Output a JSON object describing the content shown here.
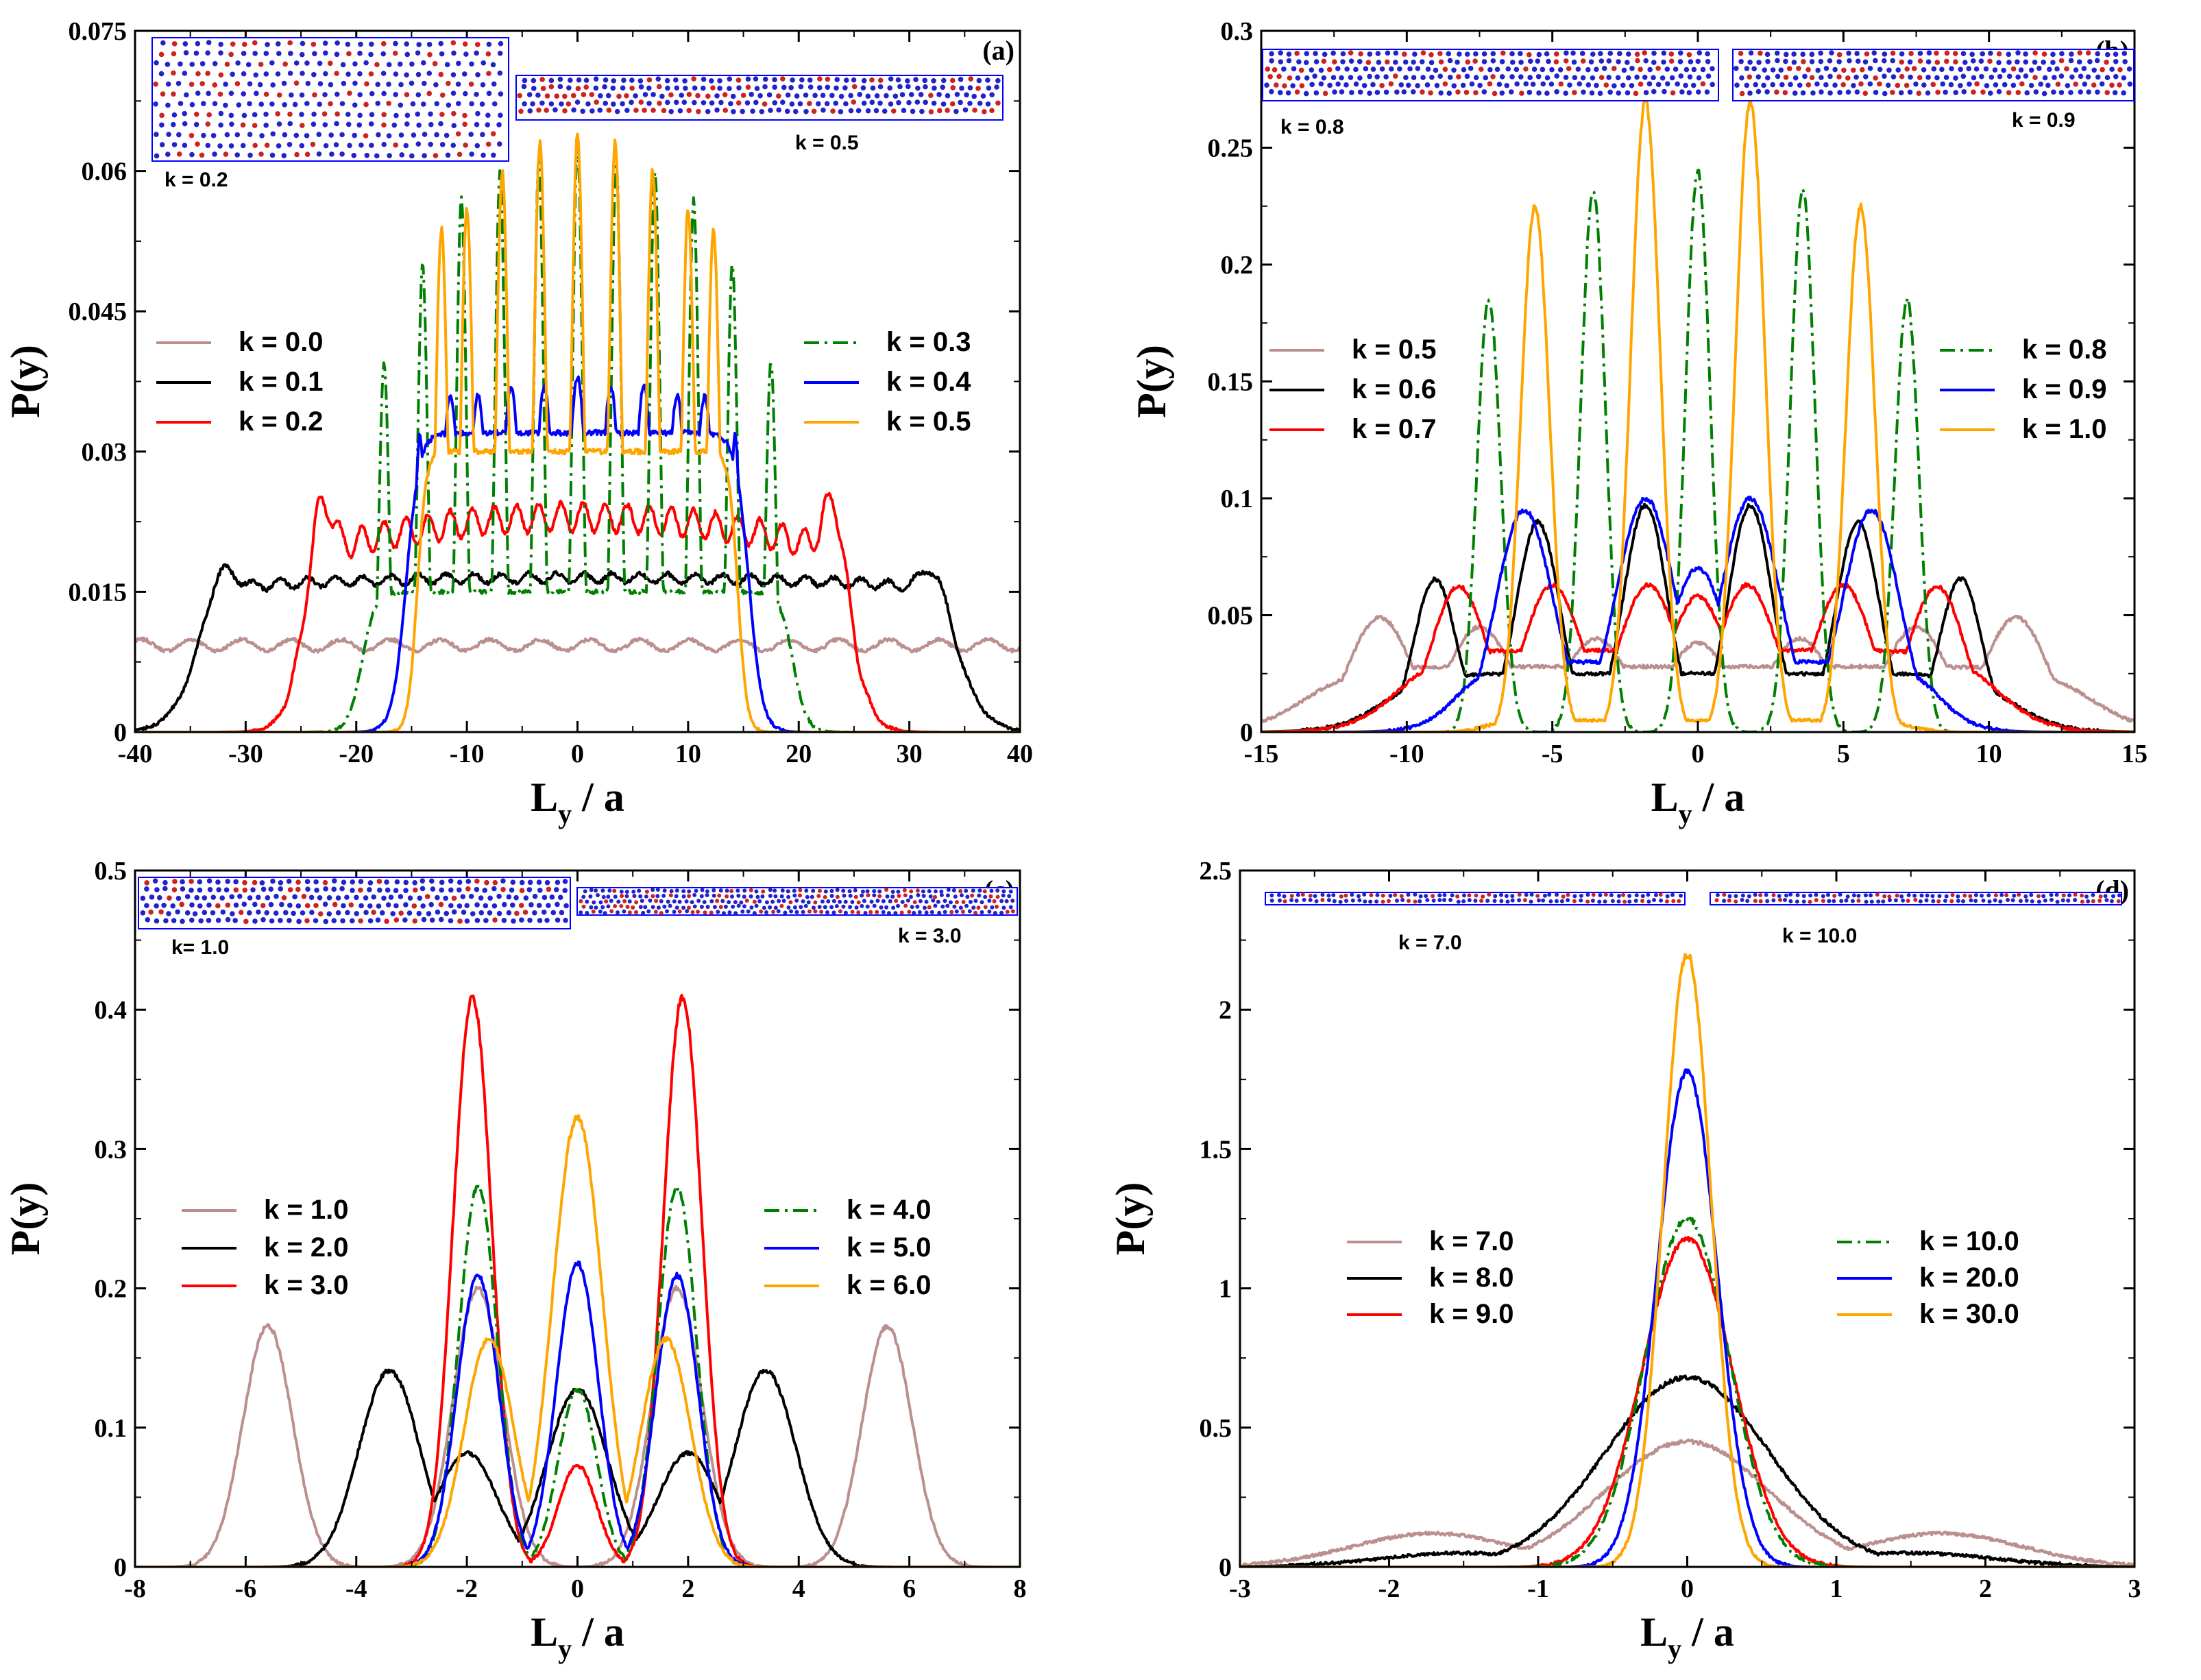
{
  "colors": {
    "k_brown": "#bc8f8f",
    "k_black": "#000000",
    "k_red": "#ff0000",
    "k_green": "#008000",
    "k_blue": "#0000ff",
    "k_orange": "#ffa500",
    "inset_border": "#0000ff",
    "particle_a": "#2222cc",
    "particle_b": "#cc2222"
  },
  "chart_data": [
    {
      "panel": "(a)",
      "type": "line",
      "xlabel": "L_y / a",
      "ylabel": "P(y)",
      "xlim": [
        -40,
        40
      ],
      "ylim": [
        0,
        0.075
      ],
      "xticks": [
        "-40",
        "-30",
        "-20",
        "-10",
        "0",
        "10",
        "20",
        "30",
        "40"
      ],
      "yticks": [
        "0",
        "0.015",
        "0.03",
        "0.045",
        "0.06",
        "0.075"
      ],
      "inset_labels": [
        "k = 0.2",
        "k = 0.5"
      ],
      "legend": [
        {
          "label": "k = 0.0",
          "color": "#bc8f8f",
          "dash": false
        },
        {
          "label": "k = 0.1",
          "color": "#000000",
          "dash": false
        },
        {
          "label": "k = 0.2",
          "color": "#ff0000",
          "dash": false
        },
        {
          "label": "k = 0.3",
          "color": "#008000",
          "dash": true
        },
        {
          "label": "k = 0.4",
          "color": "#0000ff",
          "dash": false
        },
        {
          "label": "k = 0.5",
          "color": "#ffa500",
          "dash": false
        }
      ],
      "series": [
        {
          "color": "#bc8f8f",
          "dash": false,
          "profile": {
            "kind": "flat",
            "level": 0.0093,
            "halfwidth": 45,
            "edge": 1,
            "osc": 0.0006,
            "period": 4.5
          }
        },
        {
          "color": "#000000",
          "dash": false,
          "profile": {
            "kind": "wall",
            "base": 0.0155,
            "center": 0.0165,
            "halfwidth": 34.5,
            "edge": 1.3,
            "peakpos": 32.3,
            "peakval": 0.0125,
            "peakw": 1.2,
            "osc": 0.0005,
            "period": 2.5
          }
        },
        {
          "color": "#ff0000",
          "dash": false,
          "profile": {
            "kind": "wall",
            "base": 0.019,
            "center": 0.023,
            "halfwidth": 25,
            "edge": 0.9,
            "peakpos": 23.2,
            "peakval": 0.024,
            "peakw": 0.9,
            "osc": 0.0015,
            "period": 2.0
          }
        },
        {
          "color": "#008000",
          "dash": true,
          "profile": {
            "kind": "peaks",
            "positions": [
              -17.5,
              -14,
              -10.5,
              -7,
              -3.5,
              0,
              3.5,
              7,
              10.5,
              14,
              17.5
            ],
            "heights": [
              0.041,
              0.05,
              0.057,
              0.06,
              0.061,
              0.063,
              0.061,
              0.06,
              0.057,
              0.05,
              0.041
            ],
            "width": 0.45,
            "trough": 0.015,
            "halfwidth": 19.5,
            "edge": 0.6
          }
        },
        {
          "color": "#0000ff",
          "dash": false,
          "profile": {
            "kind": "peaks",
            "positions": [
              -11.5,
              -9,
              -6,
              -3,
              0,
              3,
              6,
              9,
              11.5
            ],
            "heights": [
              0.036,
              0.036,
              0.037,
              0.037,
              0.038,
              0.037,
              0.037,
              0.036,
              0.036
            ],
            "width": 0.9,
            "trough": 0.032,
            "halfwidth": 15.5,
            "edge": 0.6,
            "extra": [
              {
                "pos": -14.3,
                "h": 0.036,
                "w": 0.5
              },
              {
                "pos": 14.3,
                "h": 0.036,
                "w": 0.5
              }
            ]
          }
        },
        {
          "color": "#ffa500",
          "dash": false,
          "profile": {
            "kind": "peaks",
            "positions": [
              -12.3,
              -10,
              -6.8,
              -3.4,
              0,
              3.4,
              6.8,
              10,
              12.3
            ],
            "heights": [
              0.054,
              0.056,
              0.06,
              0.063,
              0.064,
              0.063,
              0.06,
              0.056,
              0.054
            ],
            "width": 0.55,
            "trough": 0.03,
            "halfwidth": 14.5,
            "edge": 0.4
          }
        }
      ]
    },
    {
      "panel": "(b)",
      "type": "line",
      "xlabel": "L_y / a",
      "ylabel": "P(y)",
      "xlim": [
        -15,
        15
      ],
      "ylim": [
        0,
        0.3
      ],
      "xticks": [
        "-15",
        "-10",
        "-5",
        "0",
        "5",
        "10",
        "15"
      ],
      "yticks": [
        "0",
        "0.05",
        "0.1",
        "0.15",
        "0.2",
        "0.25",
        "0.3"
      ],
      "inset_labels": [
        "k = 0.8",
        "k = 0.9"
      ],
      "legend": [
        {
          "label": "k = 0.5",
          "color": "#bc8f8f",
          "dash": false
        },
        {
          "label": "k = 0.6",
          "color": "#000000",
          "dash": false
        },
        {
          "label": "k = 0.7",
          "color": "#ff0000",
          "dash": false
        },
        {
          "label": "k = 0.8",
          "color": "#008000",
          "dash": true
        },
        {
          "label": "k = 0.9",
          "color": "#0000ff",
          "dash": false
        },
        {
          "label": "k = 1.0",
          "color": "#ffa500",
          "dash": false
        }
      ],
      "series": [
        {
          "color": "#bc8f8f",
          "dash": false,
          "profile": {
            "kind": "peaks",
            "positions": [
              -11,
              -7.5,
              -3.5,
              0,
              3.5,
              7.5,
              11
            ],
            "heights": [
              0.052,
              0.045,
              0.04,
              0.038,
              0.04,
              0.045,
              0.052
            ],
            "width": 1.1,
            "trough": 0.028,
            "halfwidth": 13.5,
            "edge": 0.9
          }
        },
        {
          "color": "#000000",
          "dash": false,
          "profile": {
            "kind": "peaks",
            "positions": [
              -9.1,
              -5.5,
              -1.8,
              1.8,
              5.5,
              9.1
            ],
            "heights": [
              0.073,
              0.09,
              0.097,
              0.097,
              0.09,
              0.073
            ],
            "width": 0.75,
            "trough": 0.025,
            "halfwidth": 10.8,
            "edge": 0.8
          }
        },
        {
          "color": "#ff0000",
          "dash": false,
          "profile": {
            "kind": "peaks",
            "positions": [
              -8.3,
              -5,
              -1.7,
              0,
              1.7,
              5,
              8.3
            ],
            "heights": [
              0.067,
              0.063,
              0.063,
              0.058,
              0.063,
              0.063,
              0.067
            ],
            "width": 1.0,
            "trough": 0.035,
            "halfwidth": 10.3,
            "edge": 0.8
          }
        },
        {
          "color": "#008000",
          "dash": true,
          "profile": {
            "kind": "peaks",
            "positions": [
              -7.2,
              -3.6,
              0,
              3.6,
              7.2
            ],
            "heights": [
              0.192,
              0.232,
              0.24,
              0.232,
              0.192
            ],
            "width": 0.42,
            "trough": 0.0,
            "halfwidth": 8.5,
            "edge": 0.4
          }
        },
        {
          "color": "#0000ff",
          "dash": false,
          "profile": {
            "kind": "peaks",
            "positions": [
              -6,
              -1.8,
              0,
              1.8,
              6
            ],
            "heights": [
              0.097,
              0.1,
              0.07,
              0.1,
              0.097
            ],
            "width": 1.0,
            "trough": 0.03,
            "halfwidth": 8.3,
            "edge": 0.6
          }
        },
        {
          "color": "#ffa500",
          "dash": false,
          "profile": {
            "kind": "peaks",
            "positions": [
              -5.6,
              -1.8,
              1.8,
              5.6
            ],
            "heights": [
              0.228,
              0.27,
              0.27,
              0.228
            ],
            "width": 0.5,
            "trough": 0.005,
            "halfwidth": 7.3,
            "edge": 0.4
          }
        }
      ]
    },
    {
      "panel": "(c)",
      "type": "line",
      "xlabel": "L_y / a",
      "ylabel": "P(y)",
      "xlim": [
        -8,
        8
      ],
      "ylim": [
        0,
        0.55
      ],
      "xticks": [
        "-8",
        "-6",
        "-4",
        "-2",
        "0",
        "2",
        "4",
        "6",
        "8"
      ],
      "yticks": [
        "0",
        "0.1",
        "0.2",
        "0.3",
        "0.4",
        "0.5"
      ],
      "inset_labels": [
        "k= 1.0",
        "k = 3.0"
      ],
      "legend": [
        {
          "label": "k = 1.0",
          "color": "#bc8f8f",
          "dash": false
        },
        {
          "label": "k = 2.0",
          "color": "#000000",
          "dash": false
        },
        {
          "label": "k = 3.0",
          "color": "#ff0000",
          "dash": false
        },
        {
          "label": "k = 4.0",
          "color": "#008000",
          "dash": true
        },
        {
          "label": "k = 5.0",
          "color": "#0000ff",
          "dash": false
        },
        {
          "label": "k = 6.0",
          "color": "#ffa500",
          "dash": false
        }
      ],
      "series": [
        {
          "color": "#bc8f8f",
          "dash": false,
          "profile": {
            "kind": "gauss",
            "positions": [
              -5.6,
              -1.8,
              1.8,
              5.6
            ],
            "heights": [
              0.19,
              0.22,
              0.22,
              0.19
            ],
            "width": 0.45
          }
        },
        {
          "color": "#000000",
          "dash": false,
          "profile": {
            "kind": "gauss",
            "positions": [
              -3.4,
              -2.0,
              0,
              2.0,
              3.4
            ],
            "heights": [
              0.155,
              0.09,
              0.14,
              0.09,
              0.155
            ],
            "width": 0.55
          }
        },
        {
          "color": "#ff0000",
          "dash": false,
          "profile": {
            "kind": "gauss",
            "positions": [
              -1.9,
              1.9,
              0
            ],
            "heights": [
              0.45,
              0.45,
              0.08
            ],
            "width": 0.35
          }
        },
        {
          "color": "#008000",
          "dash": true,
          "profile": {
            "kind": "gauss",
            "positions": [
              -1.8,
              1.8,
              0
            ],
            "heights": [
              0.3,
              0.3,
              0.14
            ],
            "width": 0.35
          }
        },
        {
          "color": "#0000ff",
          "dash": false,
          "profile": {
            "kind": "gauss",
            "positions": [
              -1.8,
              1.8,
              0
            ],
            "heights": [
              0.23,
              0.23,
              0.24
            ],
            "width": 0.38
          }
        },
        {
          "color": "#ffa500",
          "dash": false,
          "profile": {
            "kind": "gauss",
            "positions": [
              -1.6,
              1.6,
              0
            ],
            "heights": [
              0.18,
              0.18,
              0.355
            ],
            "width": 0.45
          }
        }
      ]
    },
    {
      "panel": "(d)",
      "type": "line",
      "xlabel": "L_y / a",
      "ylabel": "P(y)",
      "xlim": [
        -3,
        3
      ],
      "ylim": [
        0,
        2.5
      ],
      "xticks": [
        "-3",
        "-2",
        "-1",
        "0",
        "1",
        "2",
        "3"
      ],
      "yticks": [
        "0",
        "0.5",
        "1",
        "1.5",
        "2",
        "2.5"
      ],
      "inset_labels": [
        "k = 7.0",
        "k = 10.0"
      ],
      "legend": [
        {
          "label": "k = 7.0",
          "color": "#bc8f8f",
          "dash": false
        },
        {
          "label": "k = 8.0",
          "color": "#000000",
          "dash": false
        },
        {
          "label": "k = 9.0",
          "color": "#ff0000",
          "dash": false
        },
        {
          "label": "k = 10.0",
          "color": "#008000",
          "dash": true
        },
        {
          "label": "k = 20.0",
          "color": "#0000ff",
          "dash": false
        },
        {
          "label": "k = 30.0",
          "color": "#ffa500",
          "dash": false
        }
      ],
      "series": [
        {
          "color": "#bc8f8f",
          "dash": false,
          "profile": {
            "kind": "gauss",
            "positions": [
              0,
              -1.7,
              1.7
            ],
            "heights": [
              0.45,
              0.12,
              0.12
            ],
            "width": 0.55
          }
        },
        {
          "color": "#000000",
          "dash": false,
          "profile": {
            "kind": "gauss",
            "positions": [
              0,
              -1.5,
              1.5
            ],
            "heights": [
              0.68,
              0.05,
              0.05
            ],
            "width": 0.55
          }
        },
        {
          "color": "#ff0000",
          "dash": false,
          "profile": {
            "kind": "gauss",
            "positions": [
              0
            ],
            "heights": [
              1.18
            ],
            "width": 0.3
          }
        },
        {
          "color": "#008000",
          "dash": true,
          "profile": {
            "kind": "gauss",
            "positions": [
              0
            ],
            "heights": [
              1.25
            ],
            "width": 0.28
          }
        },
        {
          "color": "#0000ff",
          "dash": false,
          "profile": {
            "kind": "gauss",
            "positions": [
              0
            ],
            "heights": [
              1.78
            ],
            "width": 0.2
          }
        },
        {
          "color": "#ffa500",
          "dash": false,
          "profile": {
            "kind": "gauss",
            "positions": [
              0
            ],
            "heights": [
              2.2
            ],
            "width": 0.16
          }
        }
      ]
    }
  ]
}
